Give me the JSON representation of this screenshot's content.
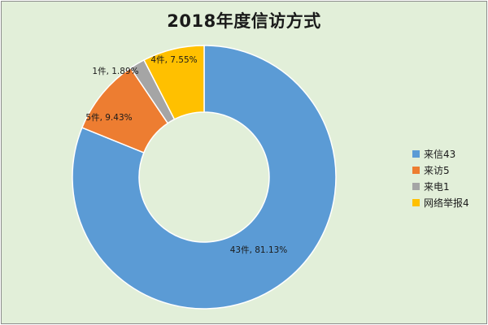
{
  "chart_data": {
    "type": "pie",
    "subtype": "doughnut",
    "title": "2018年度信访方式",
    "categories": [
      "来信",
      "来访",
      "来电",
      "网络举报"
    ],
    "values": [
      43,
      5,
      1,
      4
    ],
    "percentages": [
      81.13,
      9.43,
      1.89,
      7.55
    ],
    "data_labels": [
      "43件, 81.13%",
      "5件, 9.43%",
      "1件, 1.89%",
      "4件, 7.55%"
    ],
    "colors": [
      "#5b9bd5",
      "#ed7d31",
      "#a5a5a5",
      "#ffc000"
    ],
    "legend_position": "right",
    "legend": [
      "来信43",
      "来访5",
      "来电1",
      "网络举报4"
    ]
  }
}
